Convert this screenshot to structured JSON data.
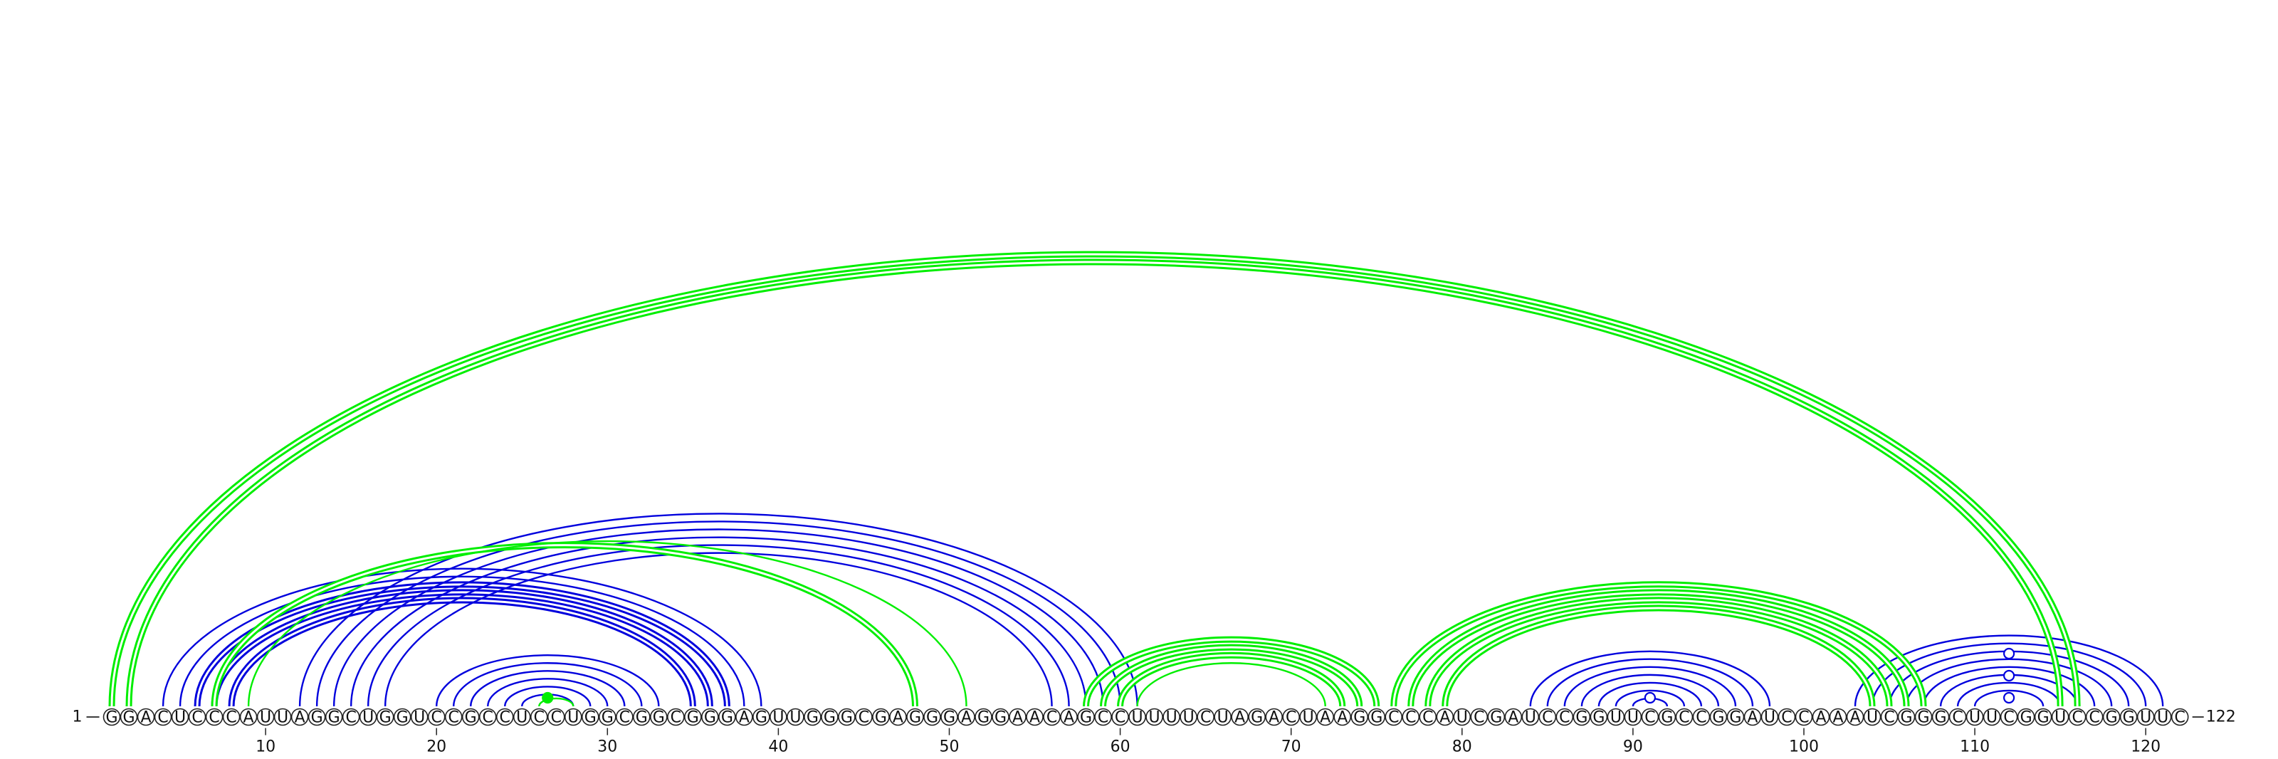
{
  "sequence": "GGACUCCCAUUAGGCUGGUCCGCCUCCUGGCGGCGGGAGUUGGGCGAGGGAGGAACAGCCUUUUCUAGACUAAGGCCCAUCGAUCCGGUUCGCCGGAUCCAAAUCGGGCUUCGGUCCGGUUC",
  "start_label": "1",
  "end_label": "122",
  "ticks": [
    10,
    20,
    30,
    40,
    50,
    60,
    70,
    80,
    90,
    100,
    110,
    120
  ],
  "colors": {
    "primary": "#0000dd",
    "secondary": "#00ee00",
    "outline": "#222222"
  },
  "helices": [
    {
      "color": "primary",
      "double": false,
      "pairs": [
        [
          4,
          39
        ],
        [
          5,
          38
        ],
        [
          6,
          37
        ],
        [
          7,
          36
        ],
        [
          8,
          35
        ]
      ]
    },
    {
      "color": "primary",
      "double": true,
      "pairs": [
        [
          6,
          37
        ],
        [
          7,
          36
        ],
        [
          8,
          35
        ]
      ]
    },
    {
      "color": "primary",
      "double": false,
      "pairs": [
        [
          12,
          61
        ],
        [
          13,
          60
        ],
        [
          14,
          59
        ],
        [
          15,
          58
        ],
        [
          16,
          57
        ],
        [
          17,
          56
        ]
      ]
    },
    {
      "color": "primary",
      "double": false,
      "pairs": [
        [
          20,
          33
        ],
        [
          21,
          32
        ],
        [
          22,
          31
        ],
        [
          23,
          30
        ],
        [
          24,
          29
        ],
        [
          25,
          28
        ]
      ]
    },
    {
      "color": "primary",
      "double": false,
      "pairs": [
        [
          84,
          98
        ],
        [
          85,
          97
        ],
        [
          86,
          96
        ],
        [
          87,
          95
        ],
        [
          88,
          94
        ],
        [
          89,
          93
        ],
        [
          90,
          92
        ]
      ]
    },
    {
      "color": "primary",
      "double": false,
      "pairs": [
        [
          103,
          121
        ],
        [
          104,
          120
        ],
        [
          105,
          119
        ],
        [
          106,
          118
        ],
        [
          107,
          117
        ],
        [
          108,
          116
        ],
        [
          109,
          115
        ],
        [
          110,
          114
        ]
      ]
    },
    {
      "color": "secondary",
      "double": true,
      "pairs": [
        [
          1,
          116
        ],
        [
          2,
          115
        ]
      ]
    },
    {
      "color": "secondary",
      "double": true,
      "pairs": [
        [
          7,
          48
        ]
      ]
    },
    {
      "color": "secondary",
      "double": false,
      "pairs": [
        [
          9,
          51
        ],
        [
          26,
          28
        ]
      ]
    },
    {
      "color": "secondary",
      "double": true,
      "pairs": [
        [
          58,
          75
        ],
        [
          59,
          74
        ],
        [
          60,
          73
        ]
      ]
    },
    {
      "color": "secondary",
      "double": false,
      "pairs": [
        [
          61,
          72
        ]
      ]
    },
    {
      "color": "secondary",
      "double": true,
      "pairs": [
        [
          76,
          107
        ],
        [
          77,
          106
        ],
        [
          78,
          105
        ],
        [
          79,
          104
        ]
      ]
    }
  ],
  "markers": [
    {
      "pos": 26.5,
      "level": 0,
      "style": "filled",
      "color": "secondary"
    },
    {
      "pos": 91,
      "level": 0,
      "style": "open",
      "color": "primary"
    },
    {
      "pos": 112,
      "level": 0,
      "style": "open",
      "color": "primary"
    },
    {
      "pos": 112,
      "level": 1,
      "style": "open",
      "color": "primary"
    },
    {
      "pos": 112,
      "level": 2,
      "style": "open",
      "color": "primary"
    }
  ]
}
